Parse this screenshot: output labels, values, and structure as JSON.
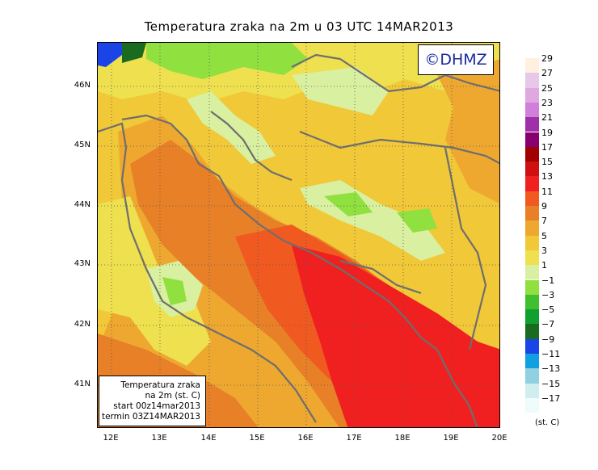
{
  "title": "Temperatura zraka na 2m u 03 UTC 14MAR2013",
  "copyright": "©DHMZ",
  "info": {
    "line1": "Temperatura zraka",
    "line2": "na 2m (st. C)",
    "line3": "start 00z14mar2013",
    "line4": "termin 03Z14MAR2013"
  },
  "y_ticks": [
    "46N",
    "45N",
    "44N",
    "43N",
    "42N",
    "41N"
  ],
  "x_ticks": [
    "12E",
    "13E",
    "14E",
    "15E",
    "16E",
    "17E",
    "18E",
    "19E",
    "20E"
  ],
  "legend": {
    "labels": [
      "29",
      "27",
      "25",
      "23",
      "21",
      "19",
      "17",
      "15",
      "13",
      "11",
      "9",
      "7",
      "5",
      "3",
      "1",
      "−1",
      "−3",
      "−5",
      "−7",
      "−9",
      "−11",
      "−13",
      "−15",
      "−17"
    ],
    "colors": [
      "#fff0e0",
      "#e8c8e8",
      "#e0a8e0",
      "#d080d8",
      "#a030a8",
      "#880070",
      "#a00000",
      "#d01010",
      "#f02020",
      "#f05a20",
      "#e88028",
      "#eea830",
      "#f0c838",
      "#f0e050",
      "#d8f0a0",
      "#90e040",
      "#40c030",
      "#10a030",
      "#1a6a20",
      "#1a44e8",
      "#10a0e0",
      "#90d0e0",
      "#d0eef0",
      "#f0fbfb"
    ],
    "unit": "(st. C)"
  },
  "colors": {
    "warm_sea": "#e88028",
    "hot": "#f02020",
    "mid": "#f0c838",
    "cool": "#d8f0a0",
    "coast": "#707070"
  }
}
